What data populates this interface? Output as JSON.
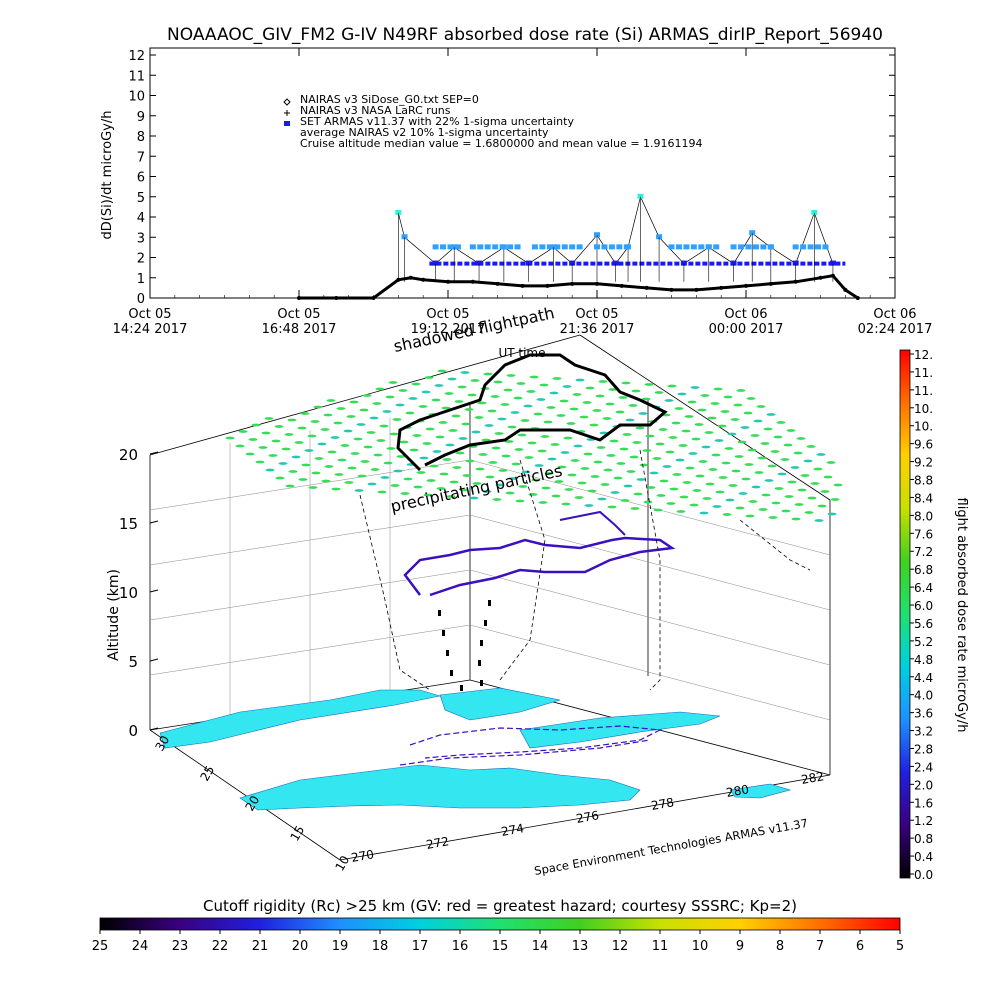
{
  "title": "NOAAAOC_GIV_FM2 G-IV    N49RF  absorbed dose rate (Si) ARMAS_dirIP_Report_56940",
  "chart_data": [
    {
      "type": "scatter",
      "ylabel": "dD(Si)/dt microGy/h",
      "xlabel": "UT time",
      "ylim": [
        0,
        12
      ],
      "yticks": [
        "0",
        "1",
        "2",
        "3",
        "4",
        "5",
        "6",
        "7",
        "8",
        "9",
        "10",
        "11",
        "12"
      ],
      "xlim": [
        "2017-10-05 14:24",
        "2017-10-06 02:24"
      ],
      "xticks": [
        {
          "line1": "Oct 05",
          "line2": "14:24 2017",
          "t": 0
        },
        {
          "line1": "Oct 05",
          "line2": "16:48 2017",
          "t": 2.4
        },
        {
          "line1": "Oct 05",
          "line2": "19:12 2017",
          "t": 4.8
        },
        {
          "line1": "Oct 05",
          "line2": "21:36 2017",
          "t": 7.2
        },
        {
          "line1": "Oct 06",
          "line2": "00:00 2017",
          "t": 9.6
        },
        {
          "line1": "Oct 06",
          "line2": "02:24 2017",
          "t": 12.0
        }
      ],
      "legend": [
        {
          "marker": "diamond",
          "text": "NAIRAS v3 SiDose_G0.txt SEP=0"
        },
        {
          "marker": "plus",
          "text": "NAIRAS v3 NASA LaRC runs"
        },
        {
          "marker": "square",
          "text": "SET ARMAS v11.37 with 22% 1-sigma uncertainty"
        },
        {
          "marker": "none",
          "text": "average NAIRAS v2 10% 1-sigma uncertainty"
        },
        {
          "marker": "none",
          "text": "Cruise altitude median value = 1.6800000 and mean value = 1.9161194"
        }
      ],
      "legend_position": "top-left",
      "series": [
        {
          "marker": "diamond",
          "color": "#000000",
          "t": [
            2.4,
            3.0,
            3.6,
            4.0,
            4.2,
            4.4,
            4.8,
            5.2,
            5.6,
            6.0,
            6.4,
            6.8,
            7.2,
            7.6,
            8.0,
            8.4,
            8.8,
            9.2,
            9.6,
            10.0,
            10.4,
            10.8,
            11.0,
            11.2,
            11.4
          ],
          "values": [
            0,
            0,
            0,
            0.9,
            1.0,
            0.9,
            0.8,
            0.8,
            0.7,
            0.6,
            0.6,
            0.7,
            0.7,
            0.6,
            0.5,
            0.4,
            0.4,
            0.5,
            0.6,
            0.7,
            0.8,
            1.0,
            1.1,
            0.4,
            0
          ]
        },
        {
          "marker": "square",
          "color": "#1a1aee",
          "label_hi": "#2ea0ff",
          "label_peak": "#33eedd",
          "t": [
            4.0,
            4.1,
            4.6,
            4.9,
            5.3,
            5.7,
            6.1,
            6.5,
            6.8,
            7.2,
            7.5,
            7.7,
            7.9,
            8.2,
            8.6,
            9.0,
            9.4,
            9.7,
            10.0,
            10.4,
            10.7,
            11.0
          ],
          "values": [
            4.2,
            3.0,
            1.7,
            2.5,
            1.7,
            2.5,
            1.7,
            2.5,
            1.7,
            3.1,
            1.7,
            2.5,
            5.0,
            3.0,
            1.7,
            2.5,
            1.7,
            3.2,
            2.5,
            1.7,
            4.2,
            1.7
          ]
        }
      ]
    },
    {
      "type": "3d-trajectory",
      "ylabel": "Altitude (km)",
      "zticks": [
        "0",
        "5",
        "10",
        "15",
        "20"
      ],
      "lat_ticks": [
        "30",
        "25",
        "20",
        "15",
        "10"
      ],
      "lon_ticks": [
        "270",
        "272",
        "274",
        "276",
        "278",
        "280",
        "282"
      ],
      "annotations": [
        "shadowed flightpath",
        "precipitating particles"
      ],
      "credit": "Space Environment Technologies ARMAS v11.37"
    },
    {
      "type": "colorbar",
      "ylabel": "flight absorbed dose rate microGy/h",
      "ticks": [
        "12.",
        "11.",
        "11.",
        "10.",
        "10.",
        "9.6",
        "9.2",
        "8.8",
        "8.4",
        "8.0",
        "7.6",
        "7.2",
        "6.8",
        "6.4",
        "6.0",
        "5.6",
        "5.2",
        "4.8",
        "4.4",
        "4.0",
        "3.6",
        "3.2",
        "2.8",
        "2.4",
        "2.0",
        "1.6",
        "1.2",
        "0.8",
        "0.4",
        "0.0"
      ]
    },
    {
      "type": "colorbar",
      "title": "Cutoff rigidity (Rc) >25 km (GV: red = greatest hazard; courtesy SSSRC; Kp=2)",
      "ticks": [
        "25",
        "24",
        "23",
        "22",
        "21",
        "20",
        "19",
        "18",
        "17",
        "16",
        "15",
        "14",
        "13",
        "12",
        "11",
        "10",
        "9",
        "8",
        "7",
        "6",
        "5"
      ]
    }
  ],
  "colors": {
    "colorbar_stops": [
      "#000000",
      "#3a0080",
      "#2020e0",
      "#1e90ff",
      "#00d0e0",
      "#20e070",
      "#40d020",
      "#c8e000",
      "#ffd000",
      "#ff7000",
      "#ff0000"
    ]
  }
}
